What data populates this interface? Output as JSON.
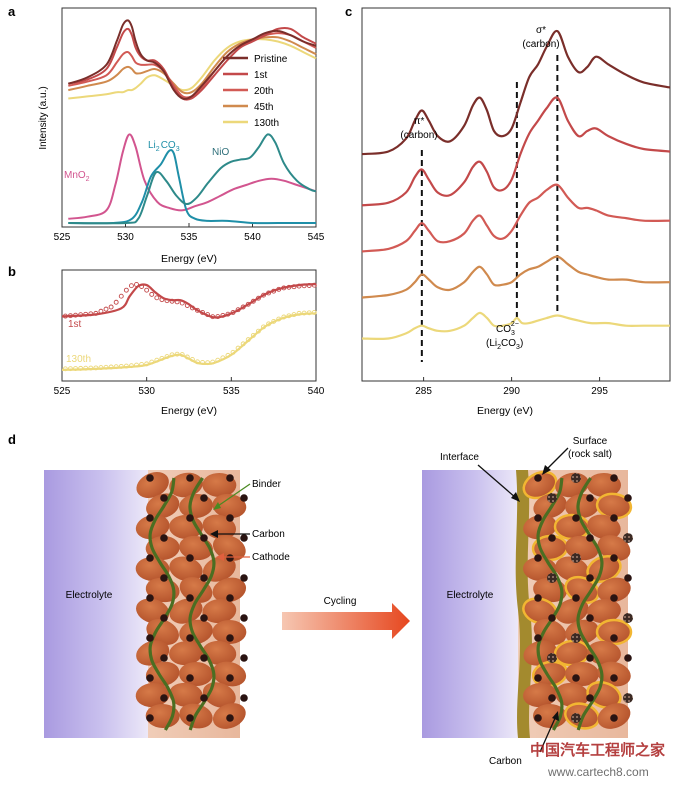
{
  "colors": {
    "pristine": "#7a2e2a",
    "c1": "#c3494a",
    "c20": "#d25a55",
    "c45": "#d08a4e",
    "c130": "#ecd87a",
    "mno2": "#d2558f",
    "li2co3": "#1f8fa8",
    "nio": "#2e8a8a",
    "binder": "#4b6e22",
    "arrow": "#e85a33",
    "electrolyte": "#a89bd8",
    "cathode": "#c0633a"
  },
  "panel_labels": {
    "a": "a",
    "b": "b",
    "c": "c",
    "d": "d"
  },
  "chart_data": [
    {
      "id": "a",
      "type": "line",
      "xlabel": "Energy (eV)",
      "ylabel": "Intensity (a.u.)",
      "xlim": [
        525,
        545
      ],
      "xticks": [
        "525",
        "530",
        "535",
        "540",
        "545"
      ],
      "legend": [
        "Pristine",
        "1st",
        "20th",
        "45th",
        "130th"
      ],
      "reference_labels": {
        "mno2": "MnO",
        "mno2_sub": "2",
        "li2co3_a": "Li",
        "li2co3_sub": "2",
        "li2co3_b": "CO",
        "li2co3_sub2": "3",
        "nio": "NiO"
      },
      "series": [
        {
          "name": "Pristine",
          "x": [
            525.5,
            527,
            528.5,
            529.3,
            529.8,
            530.2,
            530.5,
            530.8,
            531.2,
            531.7,
            532.3,
            533,
            533.8,
            534.5,
            535.2,
            536,
            537,
            538,
            539,
            540,
            541,
            542,
            543,
            544,
            545
          ],
          "values": [
            0.66,
            0.69,
            0.75,
            0.86,
            0.94,
            0.96,
            0.93,
            0.86,
            0.8,
            0.77,
            0.76,
            0.72,
            0.63,
            0.59,
            0.6,
            0.65,
            0.72,
            0.79,
            0.84,
            0.87,
            0.9,
            0.91,
            0.89,
            0.86,
            0.84
          ]
        },
        {
          "name": "1st",
          "x": [
            525.5,
            527,
            528.5,
            529.3,
            529.8,
            530.2,
            530.5,
            530.8,
            531.2,
            531.7,
            532.3,
            533,
            533.8,
            534.5,
            535.2,
            536,
            537,
            538,
            539,
            540,
            541,
            542,
            543,
            544,
            545
          ],
          "values": [
            0.66,
            0.68,
            0.73,
            0.83,
            0.9,
            0.92,
            0.89,
            0.83,
            0.79,
            0.77,
            0.77,
            0.73,
            0.64,
            0.59,
            0.59,
            0.63,
            0.7,
            0.77,
            0.83,
            0.86,
            0.89,
            0.92,
            0.92,
            0.88,
            0.85
          ]
        },
        {
          "name": "20th",
          "x": [
            525.5,
            527,
            528.5,
            529.3,
            529.8,
            530.2,
            530.5,
            530.8,
            531.2,
            531.7,
            532.3,
            533,
            533.8,
            534.5,
            535.2,
            536,
            537,
            538,
            539,
            540,
            541,
            542,
            543,
            544,
            545
          ],
          "values": [
            0.65,
            0.67,
            0.7,
            0.76,
            0.8,
            0.81,
            0.79,
            0.76,
            0.75,
            0.75,
            0.75,
            0.72,
            0.65,
            0.6,
            0.6,
            0.64,
            0.72,
            0.79,
            0.84,
            0.87,
            0.89,
            0.9,
            0.89,
            0.86,
            0.83
          ]
        },
        {
          "name": "45th",
          "x": [
            525.5,
            527,
            528.5,
            529.3,
            529.8,
            530.2,
            530.5,
            530.8,
            531.2,
            531.7,
            532.3,
            533,
            533.8,
            534.5,
            535.2,
            536,
            537,
            538,
            539,
            540,
            541,
            542,
            543,
            544,
            545
          ],
          "values": [
            0.63,
            0.65,
            0.67,
            0.7,
            0.73,
            0.74,
            0.73,
            0.71,
            0.71,
            0.72,
            0.73,
            0.71,
            0.66,
            0.62,
            0.62,
            0.66,
            0.74,
            0.81,
            0.85,
            0.87,
            0.88,
            0.88,
            0.86,
            0.83,
            0.8
          ]
        },
        {
          "name": "130th",
          "x": [
            525.5,
            527,
            528.5,
            529.3,
            529.8,
            530.2,
            530.5,
            530.8,
            531.2,
            531.7,
            532.3,
            533,
            533.8,
            534.5,
            535.2,
            536,
            537,
            538,
            539,
            540,
            541,
            542,
            543,
            544,
            545
          ],
          "values": [
            0.59,
            0.6,
            0.61,
            0.62,
            0.62,
            0.63,
            0.63,
            0.64,
            0.66,
            0.69,
            0.7,
            0.68,
            0.65,
            0.63,
            0.64,
            0.69,
            0.77,
            0.83,
            0.86,
            0.87,
            0.87,
            0.86,
            0.84,
            0.81,
            0.78
          ]
        },
        {
          "name": "MnO2",
          "x": [
            525.5,
            527,
            528.5,
            529.2,
            529.8,
            530.3,
            530.8,
            531.5,
            532.5,
            533.5,
            534.5,
            535.5,
            536.5,
            537.5,
            538.5,
            539.5,
            540.5,
            541.5,
            542.5,
            543.5,
            544.5,
            545
          ],
          "values": [
            0.02,
            0.03,
            0.06,
            0.18,
            0.34,
            0.42,
            0.36,
            0.2,
            0.1,
            0.07,
            0.06,
            0.08,
            0.1,
            0.13,
            0.16,
            0.18,
            0.2,
            0.21,
            0.2,
            0.18,
            0.16,
            0.15
          ]
        },
        {
          "name": "Li2CO3",
          "x": [
            525.5,
            529,
            530.5,
            531.3,
            532,
            532.8,
            533.4,
            533.8,
            534.2,
            534.8,
            535.5,
            536.5,
            538,
            540,
            542,
            545
          ],
          "values": [
            0.0,
            0.0,
            0.02,
            0.1,
            0.22,
            0.28,
            0.34,
            0.33,
            0.22,
            0.06,
            0.02,
            0.01,
            0.01,
            0.0,
            0.0,
            0.0
          ]
        },
        {
          "name": "NiO",
          "x": [
            525.5,
            530,
            531,
            531.7,
            532.4,
            533.2,
            534,
            534.8,
            535.6,
            536.5,
            537.5,
            538.3,
            539,
            539.8,
            540.5,
            541.2,
            541.8,
            542.5,
            543.5,
            544.5,
            545
          ],
          "values": [
            0.0,
            0.0,
            0.02,
            0.13,
            0.24,
            0.2,
            0.13,
            0.09,
            0.12,
            0.19,
            0.26,
            0.29,
            0.3,
            0.31,
            0.36,
            0.42,
            0.38,
            0.28,
            0.2,
            0.16,
            0.15
          ]
        }
      ]
    },
    {
      "id": "b",
      "type": "line",
      "xlabel": "Energy (eV)",
      "xlim": [
        525,
        540
      ],
      "xticks": [
        "525",
        "530",
        "535",
        "540"
      ],
      "series_labels": [
        "1st",
        "130th"
      ],
      "series": [
        {
          "name": "1st",
          "x": [
            525,
            527,
            528.5,
            529,
            529.5,
            530,
            530.5,
            531,
            531.5,
            532,
            532.5,
            533,
            534,
            535,
            536,
            537,
            538,
            539,
            540
          ],
          "values": [
            0.6,
            0.62,
            0.68,
            0.8,
            0.9,
            0.91,
            0.84,
            0.78,
            0.76,
            0.76,
            0.72,
            0.66,
            0.59,
            0.63,
            0.72,
            0.82,
            0.88,
            0.91,
            0.92
          ]
        },
        {
          "name": "1st-sim",
          "x": [
            525,
            527,
            528,
            528.5,
            529,
            529.5,
            530,
            530.5,
            531,
            531.5,
            532,
            533,
            534,
            535,
            536,
            537,
            538,
            539,
            540
          ],
          "values": [
            0.6,
            0.63,
            0.7,
            0.8,
            0.9,
            0.92,
            0.86,
            0.79,
            0.76,
            0.75,
            0.74,
            0.66,
            0.59,
            0.63,
            0.72,
            0.82,
            0.88,
            0.9,
            0.91
          ]
        },
        {
          "name": "130th",
          "x": [
            525,
            527,
            529,
            530,
            531,
            531.5,
            532,
            532.5,
            533,
            533.5,
            534,
            535,
            536,
            537,
            538,
            539,
            540
          ],
          "values": [
            0.07,
            0.08,
            0.1,
            0.12,
            0.18,
            0.21,
            0.22,
            0.18,
            0.14,
            0.13,
            0.14,
            0.22,
            0.36,
            0.5,
            0.58,
            0.62,
            0.63
          ]
        },
        {
          "name": "130th-sim",
          "x": [
            525,
            527,
            529,
            530,
            531,
            531.5,
            532,
            532.5,
            533,
            533.5,
            534,
            535,
            536,
            537,
            538,
            539,
            540
          ],
          "values": [
            0.08,
            0.09,
            0.11,
            0.13,
            0.19,
            0.22,
            0.23,
            0.19,
            0.15,
            0.14,
            0.15,
            0.23,
            0.37,
            0.51,
            0.59,
            0.63,
            0.64
          ]
        }
      ]
    },
    {
      "id": "c",
      "type": "line",
      "xlabel": "Energy (eV)",
      "xlim": [
        281.5,
        299
      ],
      "xticks": [
        "285",
        "290",
        "295"
      ],
      "annotations": {
        "pi_star": "π*",
        "pi_carbon": "(carbon)",
        "sigma_star": "σ*",
        "sigma_carbon": "(carbon)",
        "co3": "CO",
        "co3_sub": "3",
        "co3_sup": "2−",
        "li2co3_a": "(Li",
        "li2co3_sub": "2",
        "li2co3_b": "CO",
        "li2co3_sub2": "3",
        "li2co3_c": ")"
      },
      "dashed_lines": [
        284.9,
        290.3,
        292.6
      ],
      "series": [
        {
          "name": "Pristine",
          "offset": 0.8,
          "x": [
            281.5,
            283,
            284,
            284.5,
            284.9,
            285.3,
            285.8,
            286.5,
            287.3,
            287.8,
            288.2,
            288.6,
            289,
            289.5,
            290,
            290.5,
            291,
            291.5,
            292,
            292.6,
            293.2,
            293.8,
            294.3,
            294.8,
            295.5,
            296.5,
            297.5,
            299
          ],
          "values": [
            0.0,
            0.01,
            0.06,
            0.13,
            0.17,
            0.13,
            0.07,
            0.05,
            0.11,
            0.19,
            0.22,
            0.17,
            0.09,
            0.07,
            0.1,
            0.2,
            0.3,
            0.35,
            0.42,
            0.48,
            0.38,
            0.32,
            0.34,
            0.38,
            0.35,
            0.31,
            0.28,
            0.26
          ]
        },
        {
          "name": "1st",
          "offset": 0.6,
          "x": [
            281.5,
            283,
            284,
            284.5,
            284.9,
            285.3,
            285.8,
            286.5,
            287.3,
            287.8,
            288.2,
            288.6,
            289,
            289.5,
            290,
            290.5,
            291,
            291.5,
            292,
            292.6,
            293.2,
            293.8,
            294.3,
            294.8,
            295.5,
            296.5,
            297.5,
            299
          ],
          "values": [
            0.0,
            0.01,
            0.05,
            0.11,
            0.14,
            0.1,
            0.05,
            0.04,
            0.09,
            0.15,
            0.17,
            0.13,
            0.07,
            0.06,
            0.1,
            0.2,
            0.28,
            0.33,
            0.38,
            0.42,
            0.33,
            0.27,
            0.29,
            0.3,
            0.27,
            0.24,
            0.22,
            0.21
          ]
        },
        {
          "name": "20th",
          "offset": 0.42,
          "x": [
            281.5,
            283,
            284,
            284.5,
            284.9,
            285.3,
            285.8,
            286.5,
            287.3,
            287.8,
            288.2,
            288.6,
            289,
            289.5,
            290,
            290.5,
            291,
            291.5,
            292,
            292.6,
            293.2,
            293.8,
            294.3,
            294.8,
            295.5,
            296.5,
            297.5,
            299
          ],
          "values": [
            0.0,
            0.01,
            0.04,
            0.08,
            0.11,
            0.08,
            0.04,
            0.04,
            0.07,
            0.12,
            0.14,
            0.1,
            0.06,
            0.05,
            0.08,
            0.14,
            0.19,
            0.21,
            0.24,
            0.26,
            0.21,
            0.17,
            0.17,
            0.16,
            0.14,
            0.13,
            0.12,
            0.12
          ]
        },
        {
          "name": "45th",
          "offset": 0.24,
          "x": [
            281.5,
            283,
            284,
            284.5,
            284.9,
            285.3,
            285.8,
            286.5,
            287.3,
            287.8,
            288.2,
            288.6,
            289,
            289.5,
            290,
            290.5,
            291,
            291.5,
            292,
            292.6,
            293.2,
            293.8,
            294.3,
            294.8,
            295.5,
            296.5,
            297.5,
            299
          ],
          "values": [
            0.0,
            0.01,
            0.03,
            0.06,
            0.09,
            0.07,
            0.04,
            0.03,
            0.06,
            0.1,
            0.12,
            0.09,
            0.05,
            0.05,
            0.06,
            0.09,
            0.11,
            0.12,
            0.14,
            0.16,
            0.13,
            0.1,
            0.09,
            0.08,
            0.07,
            0.07,
            0.06,
            0.06
          ]
        },
        {
          "name": "130th",
          "offset": 0.08,
          "x": [
            281.5,
            283,
            284,
            284.5,
            284.9,
            285.3,
            285.8,
            286.5,
            287.3,
            287.8,
            288.2,
            288.6,
            289,
            289.5,
            290,
            290.3,
            290.6,
            291,
            291.5,
            292,
            292.6,
            293.2,
            293.8,
            294.5,
            295.5,
            296.5,
            297.5,
            299
          ],
          "values": [
            0.0,
            0.0,
            0.02,
            0.04,
            0.05,
            0.04,
            0.03,
            0.03,
            0.05,
            0.08,
            0.1,
            0.08,
            0.05,
            0.05,
            0.06,
            0.08,
            0.06,
            0.06,
            0.07,
            0.08,
            0.09,
            0.08,
            0.07,
            0.06,
            0.06,
            0.05,
            0.05,
            0.05
          ]
        }
      ]
    }
  ],
  "diagram": {
    "left": {
      "electrolyte": "Electrolyte",
      "binder": "Binder",
      "carbon": "Carbon",
      "cathode": "Cathode"
    },
    "cycling": "Cycling",
    "right": {
      "electrolyte": "Electrolyte",
      "interface": "Interface",
      "surface_1": "Surface",
      "surface_2": "(rock salt)",
      "carbon": "Carbon"
    }
  },
  "watermark": {
    "line1": "中国汽车工程师之家",
    "line2": "www.cartech8.com"
  }
}
